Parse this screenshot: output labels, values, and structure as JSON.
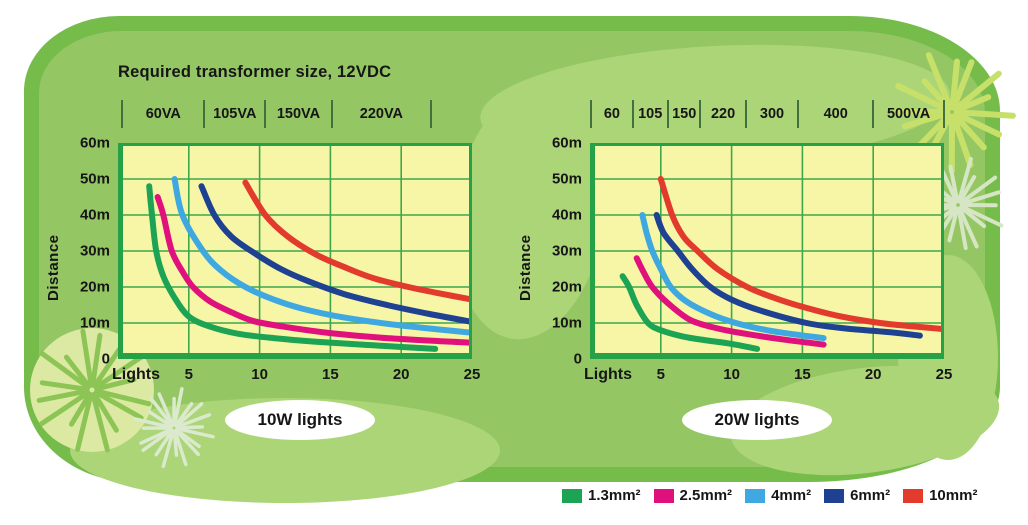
{
  "header": {
    "title": "Required transformer size, 12VDC"
  },
  "legend": {
    "items": [
      {
        "label": "1.3mm²",
        "color": "#1ca353"
      },
      {
        "label": "2.5mm²",
        "color": "#e0117c"
      },
      {
        "label": "4mm²",
        "color": "#3fa8e0"
      },
      {
        "label": "6mm²",
        "color": "#1e4191"
      },
      {
        "label": "10mm²",
        "color": "#e23a2d"
      }
    ]
  },
  "colors": {
    "plot_background": "#f6f6a6",
    "grid_line": "#3fa64d",
    "plot_border": "#26a148",
    "blob_outer": "#75bc4b",
    "blob_inner": "#94c763",
    "blob_patch": "#abd577",
    "text": "#161616"
  },
  "chart_data": [
    {
      "type": "line",
      "caption": "10W lights",
      "xlabel": "Lights",
      "ylabel": "Distance",
      "xlim": [
        0,
        25
      ],
      "ylim": [
        0,
        60
      ],
      "x_ticks": [
        5,
        10,
        15,
        20,
        25
      ],
      "y_tick_labels": [
        "60m",
        "50m",
        "40m",
        "30m",
        "20m",
        "10m",
        "0"
      ],
      "grid": true,
      "transformer_labels": [
        "60VA",
        "105VA",
        "150VA",
        "220VA"
      ],
      "transformer_boundaries": [
        0.3,
        6.1,
        10.4,
        15.1,
        22.1
      ],
      "series": [
        {
          "name": "1.3mm²",
          "color": "#1ca353",
          "points": [
            [
              2.2,
              48
            ],
            [
              2.4,
              40
            ],
            [
              2.7,
              30
            ],
            [
              3.2,
              23
            ],
            [
              4,
              17
            ],
            [
              5,
              11.8
            ],
            [
              6.5,
              9
            ],
            [
              8.5,
              7
            ],
            [
              11,
              5.8
            ],
            [
              14,
              4.8
            ],
            [
              18,
              3.8
            ],
            [
              22.4,
              2.8
            ]
          ]
        },
        {
          "name": "2.5mm²",
          "color": "#e0117c",
          "points": [
            [
              2.8,
              45
            ],
            [
              3.2,
              40
            ],
            [
              3.8,
              30
            ],
            [
              4.6,
              24
            ],
            [
              5.3,
              20
            ],
            [
              6.5,
              16
            ],
            [
              8,
              13
            ],
            [
              9.6,
              10.5
            ],
            [
              12,
              8.8
            ],
            [
              15,
              7.2
            ],
            [
              19,
              5.8
            ],
            [
              25,
              4.5
            ]
          ]
        },
        {
          "name": "4mm²",
          "color": "#3fa8e0",
          "points": [
            [
              4,
              50
            ],
            [
              4.55,
              40
            ],
            [
              6,
              30
            ],
            [
              7.3,
              24.5
            ],
            [
              9,
              20
            ],
            [
              11,
              16.5
            ],
            [
              13,
              14
            ],
            [
              16,
              11.5
            ],
            [
              20,
              9.3
            ],
            [
              25,
              7.3
            ]
          ]
        },
        {
          "name": "6mm²",
          "color": "#1e4191",
          "points": [
            [
              5.9,
              48
            ],
            [
              6.8,
              40
            ],
            [
              8,
              34
            ],
            [
              9.6,
              29.5
            ],
            [
              11.5,
              25
            ],
            [
              13.5,
              21.5
            ],
            [
              16,
              18
            ],
            [
              19,
              15
            ],
            [
              22,
              12.5
            ],
            [
              25,
              10.3
            ]
          ]
        },
        {
          "name": "10mm²",
          "color": "#e23a2d",
          "points": [
            [
              9,
              49
            ],
            [
              10.4,
              40
            ],
            [
              12,
              34
            ],
            [
              14,
              29
            ],
            [
              16,
              25.5
            ],
            [
              18,
              22.5
            ],
            [
              20.5,
              20
            ],
            [
              23,
              18
            ],
            [
              25,
              16.5
            ]
          ]
        }
      ]
    },
    {
      "type": "line",
      "caption": "20W lights",
      "xlabel": "Lights",
      "ylabel": "Distance",
      "xlim": [
        0,
        25
      ],
      "ylim": [
        0,
        60
      ],
      "x_ticks": [
        5,
        10,
        15,
        20,
        25
      ],
      "y_tick_labels": [
        "60m",
        "50m",
        "40m",
        "30m",
        "20m",
        "10m",
        "0"
      ],
      "grid": true,
      "transformer_labels": [
        "60",
        "105",
        "150",
        "220",
        "300",
        "400",
        "500VA"
      ],
      "transformer_boundaries": [
        0.1,
        3.0,
        5.5,
        7.8,
        11.0,
        14.7,
        20.0,
        25.0
      ],
      "series": [
        {
          "name": "1.3mm²",
          "color": "#1ca353",
          "points": [
            [
              2.3,
              23
            ],
            [
              2.76,
              20
            ],
            [
              3.3,
              15
            ],
            [
              4.1,
              10
            ],
            [
              5,
              8
            ],
            [
              6.5,
              6.3
            ],
            [
              8,
              5.3
            ],
            [
              10,
              4.2
            ],
            [
              11.8,
              2.8
            ]
          ]
        },
        {
          "name": "2.5mm²",
          "color": "#e0117c",
          "points": [
            [
              3.3,
              28
            ],
            [
              3.8,
              24
            ],
            [
              4.4,
              20
            ],
            [
              5.5,
              15.5
            ],
            [
              7.1,
              10.8
            ],
            [
              9,
              8.5
            ],
            [
              11,
              7
            ],
            [
              13.5,
              5.5
            ],
            [
              16.5,
              4
            ]
          ]
        },
        {
          "name": "4mm²",
          "color": "#3fa8e0",
          "points": [
            [
              3.7,
              40
            ],
            [
              4,
              35
            ],
            [
              4.4,
              30
            ],
            [
              5,
              25
            ],
            [
              5.7,
              20
            ],
            [
              6.8,
              16
            ],
            [
              8.5,
              12.5
            ],
            [
              10.3,
              10
            ],
            [
              12.5,
              8
            ],
            [
              14.5,
              6.8
            ],
            [
              16.5,
              5.8
            ]
          ]
        },
        {
          "name": "6mm²",
          "color": "#1e4191",
          "points": [
            [
              4.7,
              40
            ],
            [
              5.2,
              35
            ],
            [
              6.2,
              30
            ],
            [
              7.2,
              25
            ],
            [
              8.5,
              20
            ],
            [
              10,
              16.5
            ],
            [
              12,
              13.5
            ],
            [
              15.3,
              10
            ],
            [
              18,
              8.5
            ],
            [
              21,
              7.5
            ],
            [
              23.3,
              6.5
            ]
          ]
        },
        {
          "name": "10mm²",
          "color": "#e23a2d",
          "points": [
            [
              5,
              50
            ],
            [
              5.8,
              40
            ],
            [
              6.6,
              34
            ],
            [
              7.6,
              30
            ],
            [
              9,
              25
            ],
            [
              11.1,
              20
            ],
            [
              13,
              17
            ],
            [
              15,
              14.5
            ],
            [
              17.5,
              12
            ],
            [
              20.5,
              10
            ],
            [
              23,
              9
            ],
            [
              25,
              8.3
            ]
          ]
        }
      ]
    }
  ]
}
